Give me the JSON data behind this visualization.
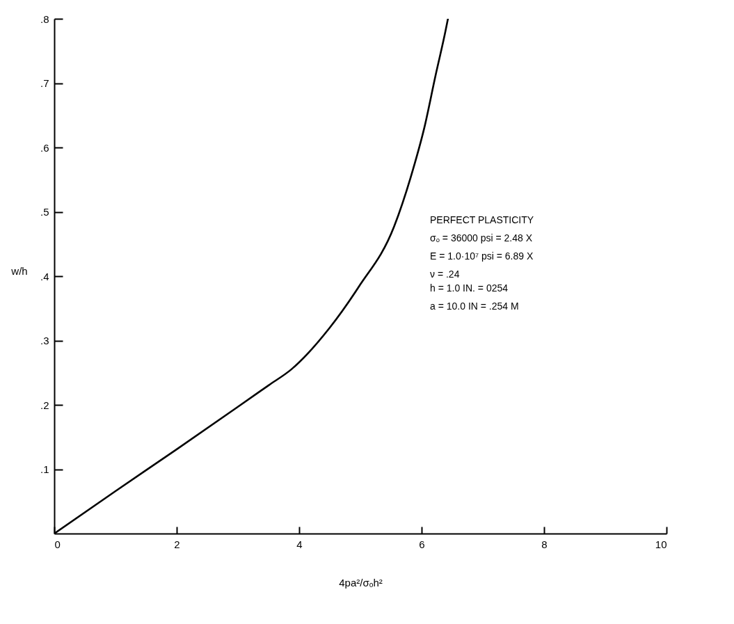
{
  "chart_data": {
    "type": "line",
    "xlabel": "4pa²/σₒh²",
    "ylabel": "w/h",
    "xlim": [
      0,
      10
    ],
    "xticks": [
      0,
      2,
      4,
      6,
      8,
      10
    ],
    "ylim": [
      0,
      0.8
    ],
    "yticks": [
      {
        "value": 0.1,
        "label": ".1"
      },
      {
        "value": 0.2,
        "label": ".2"
      },
      {
        "value": 0.3,
        "label": ".3"
      },
      {
        "value": 0.4,
        "label": ".4"
      },
      {
        "value": 0.5,
        "label": ".5"
      },
      {
        "value": 0.6,
        "label": ".6"
      },
      {
        "value": 0.7,
        "label": ".7"
      },
      {
        "value": 0.8,
        "label": ".8"
      }
    ],
    "grid": false,
    "marker": "none",
    "line_style": "solid",
    "series": [
      {
        "color": "#000000",
        "x": [
          0,
          1,
          2,
          3,
          3.51,
          3.87,
          4.5,
          4.97,
          5.55,
          5.86,
          6.04,
          6.23,
          6.39,
          6.43
        ],
        "values": [
          0,
          0.066,
          0.131,
          0.197,
          0.231,
          0.255,
          0.32,
          0.383,
          0.477,
          0.566,
          0.629,
          0.713,
          0.781,
          0.8
        ]
      }
    ],
    "annotations": [
      "PERFECT PLASTICITY",
      "σₒ =  36000 psi   = 2.48 X",
      "E  =  1.0·10⁷ psi = 6.89 X",
      "ν  =  .24",
      "h  =  1.0 IN.       = 0254",
      "a  =  10.0 IN      = .254 M"
    ]
  }
}
